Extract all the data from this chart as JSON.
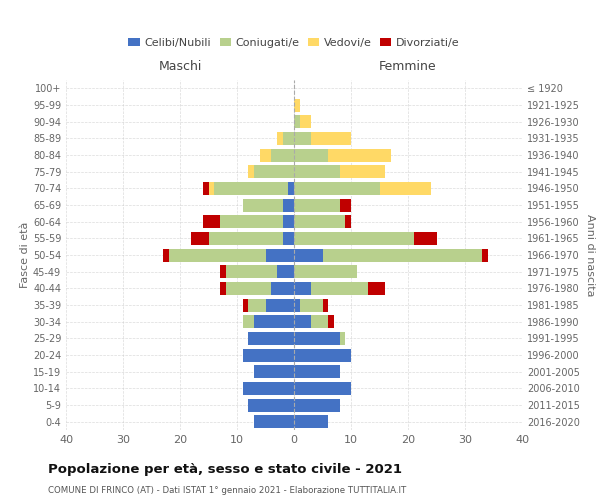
{
  "age_groups": [
    "0-4",
    "5-9",
    "10-14",
    "15-19",
    "20-24",
    "25-29",
    "30-34",
    "35-39",
    "40-44",
    "45-49",
    "50-54",
    "55-59",
    "60-64",
    "65-69",
    "70-74",
    "75-79",
    "80-84",
    "85-89",
    "90-94",
    "95-99",
    "100+"
  ],
  "birth_years": [
    "2016-2020",
    "2011-2015",
    "2006-2010",
    "2001-2005",
    "1996-2000",
    "1991-1995",
    "1986-1990",
    "1981-1985",
    "1976-1980",
    "1971-1975",
    "1966-1970",
    "1961-1965",
    "1956-1960",
    "1951-1955",
    "1946-1950",
    "1941-1945",
    "1936-1940",
    "1931-1935",
    "1926-1930",
    "1921-1925",
    "≤ 1920"
  ],
  "male": {
    "celibe": [
      7,
      8,
      9,
      7,
      9,
      8,
      7,
      5,
      4,
      3,
      5,
      2,
      2,
      2,
      1,
      0,
      0,
      0,
      0,
      0,
      0
    ],
    "coniugato": [
      0,
      0,
      0,
      0,
      0,
      0,
      2,
      3,
      8,
      9,
      17,
      13,
      11,
      7,
      13,
      7,
      4,
      2,
      0,
      0,
      0
    ],
    "vedovo": [
      0,
      0,
      0,
      0,
      0,
      0,
      0,
      0,
      0,
      0,
      0,
      0,
      0,
      0,
      1,
      1,
      2,
      1,
      0,
      0,
      0
    ],
    "divorziato": [
      0,
      0,
      0,
      0,
      0,
      0,
      0,
      1,
      1,
      1,
      1,
      3,
      3,
      0,
      1,
      0,
      0,
      0,
      0,
      0,
      0
    ]
  },
  "female": {
    "nubile": [
      6,
      8,
      10,
      8,
      10,
      8,
      3,
      1,
      3,
      0,
      5,
      0,
      0,
      0,
      0,
      0,
      0,
      0,
      0,
      0,
      0
    ],
    "coniugata": [
      0,
      0,
      0,
      0,
      0,
      1,
      3,
      4,
      10,
      11,
      28,
      21,
      9,
      8,
      15,
      8,
      6,
      3,
      1,
      0,
      0
    ],
    "vedova": [
      0,
      0,
      0,
      0,
      0,
      0,
      0,
      0,
      0,
      0,
      0,
      0,
      0,
      0,
      9,
      8,
      11,
      7,
      2,
      1,
      0
    ],
    "divorziata": [
      0,
      0,
      0,
      0,
      0,
      0,
      1,
      1,
      3,
      0,
      1,
      4,
      1,
      2,
      0,
      0,
      0,
      0,
      0,
      0,
      0
    ]
  },
  "colors": {
    "celibe": "#4472c4",
    "coniugato": "#b8d08d",
    "vedovo": "#ffd966",
    "divorziato": "#c00000"
  },
  "xlim": 40,
  "title": "Popolazione per età, sesso e stato civile - 2021",
  "subtitle": "COMUNE DI FRINCO (AT) - Dati ISTAT 1° gennaio 2021 - Elaborazione TUTTITALIA.IT",
  "ylabel_left": "Fasce di età",
  "ylabel_right": "Anni di nascita",
  "legend_labels": [
    "Celibi/Nubili",
    "Coniugati/e",
    "Vedovi/e",
    "Divorziati/e"
  ],
  "bg_color": "#ffffff",
  "grid_color": "#cccccc"
}
